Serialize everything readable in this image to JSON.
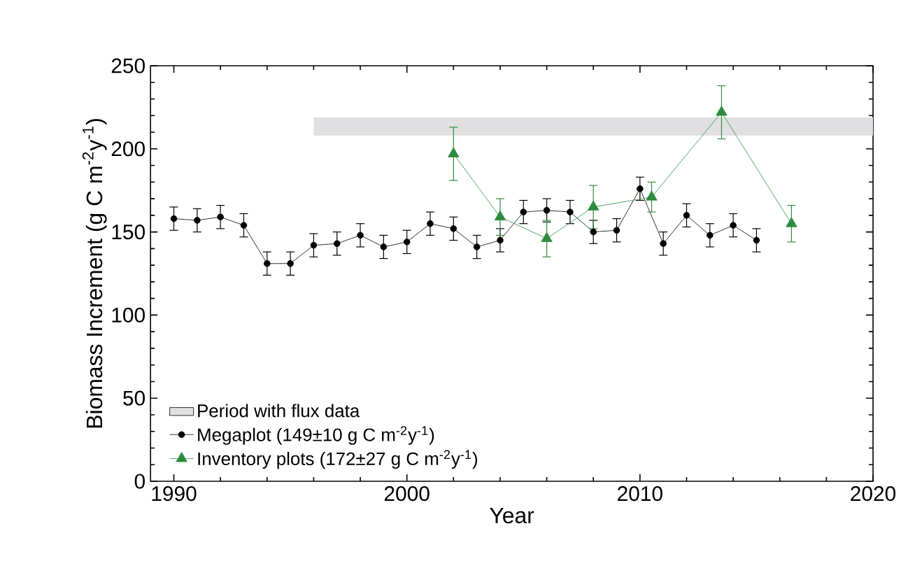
{
  "chart_data": {
    "type": "line",
    "xlabel": "Year",
    "ylabel": "Biomass Increment (g C m$^{-2}$y$^{-1}$)",
    "xlim": [
      1989,
      2020
    ],
    "ylim": [
      0,
      250
    ],
    "xticks": [
      1990,
      2000,
      2010,
      2020
    ],
    "yticks": [
      0,
      50,
      100,
      150,
      200,
      250
    ],
    "legend": "bottom left",
    "grid": false,
    "bands": [
      {
        "axis": "x",
        "from": 1996,
        "to": 2020,
        "label": "Period with flux data",
        "color": "#e0e0e2"
      }
    ],
    "series": [
      {
        "name": "Megaplot (149±10 g C m$^{-2}$y$^{-1}$)",
        "color": "#000000",
        "marker": "circle",
        "x": [
          1990,
          1991,
          1992,
          1993,
          1994,
          1995,
          1996,
          1997,
          1998,
          1999,
          2000,
          2001,
          2002,
          2003,
          2004,
          2005,
          2006,
          2007,
          2008,
          2009,
          2010,
          2011,
          2012,
          2013,
          2014,
          2015
        ],
        "values": [
          158,
          157,
          159,
          154,
          131,
          131,
          142,
          143,
          148,
          141,
          144,
          155,
          152,
          141,
          145,
          162,
          163,
          162,
          150,
          151,
          176,
          143,
          160,
          148,
          154,
          145
        ],
        "errors": [
          7,
          7,
          7,
          7,
          7,
          7,
          7,
          7,
          7,
          7,
          7,
          7,
          7,
          7,
          7,
          7,
          7,
          7,
          7,
          7,
          7,
          7,
          7,
          7,
          7,
          7
        ]
      },
      {
        "name": "Inventory plots (172±27 g C m$^{-2}$y$^{-1}$)",
        "color": "#2e8b3e",
        "marker": "triangle",
        "x": [
          2002,
          2004,
          2006,
          2008,
          2010.5,
          2013.5,
          2016.5
        ],
        "values": [
          197,
          159,
          146,
          165,
          171,
          222,
          155
        ],
        "errors": [
          16,
          11,
          11,
          13,
          9,
          16,
          11
        ]
      }
    ]
  }
}
